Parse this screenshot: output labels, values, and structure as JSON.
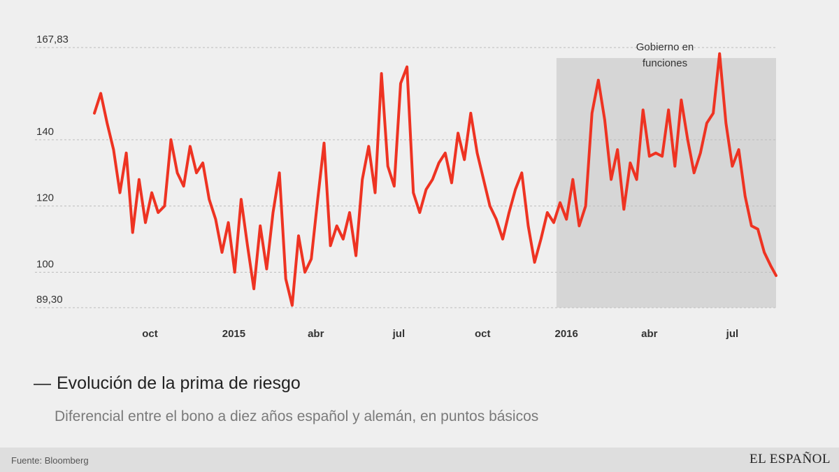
{
  "chart_data": {
    "type": "line",
    "title": "Evolución de la prima de riesgo",
    "subtitle": "Diferencial entre el bono a diez años español y alemán, en puntos básicos",
    "ylim": [
      89.3,
      167.83
    ],
    "y_ticks": [
      "167,83",
      "140",
      "120",
      "100",
      "89,30"
    ],
    "y_tick_values": [
      167.83,
      140,
      120,
      100,
      89.3
    ],
    "x_labels": [
      "oct",
      "2015",
      "abr",
      "jul",
      "oct",
      "2016",
      "abr",
      "jul"
    ],
    "x_label_dates": [
      "2014-10-01",
      "2015-01-01",
      "2015-04-01",
      "2015-07-01",
      "2015-10-01",
      "2016-01-01",
      "2016-04-01",
      "2016-07-01"
    ],
    "x_range": [
      "2014-08-01",
      "2016-08-18"
    ],
    "grid": "horizontal dashed",
    "line_color": "#ee3322",
    "shaded_region": {
      "label": "Gobierno en funciones",
      "start": "2015-12-21",
      "end": "2016-08-18",
      "color": "#d6d6d6"
    },
    "x": [
      "2014-08-01",
      "2014-08-08",
      "2014-08-15",
      "2014-08-22",
      "2014-08-29",
      "2014-09-05",
      "2014-09-12",
      "2014-09-19",
      "2014-09-26",
      "2014-10-03",
      "2014-10-10",
      "2014-10-17",
      "2014-10-24",
      "2014-10-31",
      "2014-11-07",
      "2014-11-14",
      "2014-11-21",
      "2014-11-28",
      "2014-12-05",
      "2014-12-12",
      "2014-12-19",
      "2014-12-26",
      "2015-01-02",
      "2015-01-09",
      "2015-01-16",
      "2015-01-23",
      "2015-01-30",
      "2015-02-06",
      "2015-02-13",
      "2015-02-20",
      "2015-02-27",
      "2015-03-06",
      "2015-03-13",
      "2015-03-20",
      "2015-03-27",
      "2015-04-03",
      "2015-04-10",
      "2015-04-17",
      "2015-04-24",
      "2015-05-01",
      "2015-05-08",
      "2015-05-15",
      "2015-05-22",
      "2015-05-29",
      "2015-06-05",
      "2015-06-12",
      "2015-06-19",
      "2015-06-26",
      "2015-07-03",
      "2015-07-10",
      "2015-07-17",
      "2015-07-24",
      "2015-07-31",
      "2015-08-07",
      "2015-08-14",
      "2015-08-21",
      "2015-08-28",
      "2015-09-04",
      "2015-09-11",
      "2015-09-18",
      "2015-09-25",
      "2015-10-02",
      "2015-10-09",
      "2015-10-16",
      "2015-10-23",
      "2015-10-30",
      "2015-11-06",
      "2015-11-13",
      "2015-11-20",
      "2015-11-27",
      "2015-12-04",
      "2015-12-11",
      "2015-12-18",
      "2015-12-25",
      "2016-01-01",
      "2016-01-08",
      "2016-01-15",
      "2016-01-22",
      "2016-01-29",
      "2016-02-05",
      "2016-02-12",
      "2016-02-19",
      "2016-02-26",
      "2016-03-04",
      "2016-03-11",
      "2016-03-18",
      "2016-03-25",
      "2016-04-01",
      "2016-04-08",
      "2016-04-15",
      "2016-04-22",
      "2016-04-29",
      "2016-05-06",
      "2016-05-13",
      "2016-05-20",
      "2016-05-27",
      "2016-06-03",
      "2016-06-10",
      "2016-06-17",
      "2016-06-24",
      "2016-07-01",
      "2016-07-08",
      "2016-07-15",
      "2016-07-22",
      "2016-07-29",
      "2016-08-05",
      "2016-08-12",
      "2016-08-18"
    ],
    "values": [
      148,
      154,
      145,
      137,
      124,
      136,
      112,
      128,
      115,
      124,
      118,
      120,
      140,
      130,
      126,
      138,
      130,
      133,
      122,
      116,
      106,
      115,
      100,
      122,
      108,
      95,
      114,
      101,
      118,
      130,
      98,
      90,
      111,
      100,
      104,
      122,
      139,
      108,
      114,
      110,
      118,
      105,
      128,
      138,
      124,
      160,
      132,
      126,
      157,
      162,
      124,
      118,
      125,
      128,
      133,
      136,
      127,
      142,
      134,
      148,
      136,
      128,
      120,
      116,
      110,
      118,
      125,
      130,
      114,
      103,
      110,
      118,
      115,
      121,
      116,
      128,
      114,
      120,
      148,
      158,
      146,
      128,
      137,
      119,
      133,
      128,
      149,
      135,
      136,
      135,
      149,
      132,
      152,
      140,
      130,
      136,
      145,
      148,
      166,
      145,
      132,
      137,
      123,
      114,
      113,
      106,
      102,
      99
    ]
  },
  "annotation": "Gobierno en funciones",
  "title": "Evolución de la prima de riesgo",
  "title_dash": "—",
  "subtitle": "Diferencial entre el bono a diez años español y alemán, en puntos básicos",
  "footer": {
    "source": "Fuente: Bloomberg",
    "brand": "EL ESPAÑOL"
  }
}
